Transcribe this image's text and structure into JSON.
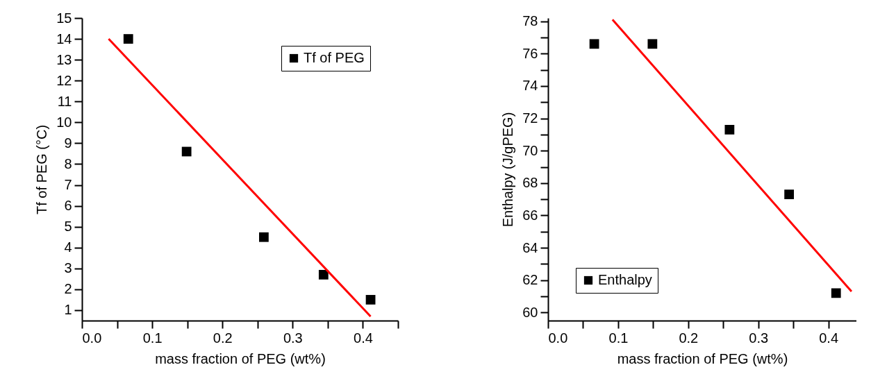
{
  "chart_data": [
    {
      "type": "scatter",
      "xlabel": "mass fraction of PEG (wt%)",
      "ylabel": "Tf of PEG (°C)",
      "xlim": [
        0,
        0.45
      ],
      "ylim": [
        0.5,
        15
      ],
      "xticks": [
        {
          "value": 0,
          "label": "0.0"
        },
        {
          "value": 0.05,
          "label": null
        },
        {
          "value": 0.1,
          "label": "0.1"
        },
        {
          "value": 0.15,
          "label": null
        },
        {
          "value": 0.2,
          "label": "0.2"
        },
        {
          "value": 0.25,
          "label": null
        },
        {
          "value": 0.3,
          "label": "0.3"
        },
        {
          "value": 0.35,
          "label": null
        },
        {
          "value": 0.4,
          "label": "0.4"
        },
        {
          "value": 0.45,
          "label": null
        }
      ],
      "yticks": [
        1,
        2,
        3,
        4,
        5,
        6,
        7,
        8,
        9,
        10,
        11,
        12,
        13,
        14,
        15
      ],
      "grid": false,
      "legend": "top right",
      "series": [
        {
          "name": "Tf of PEG",
          "type": "scatter",
          "marker": "square",
          "color": "#000000",
          "x": [
            0.066,
            0.149,
            0.259,
            0.344,
            0.411
          ],
          "values": [
            14.0,
            8.6,
            4.5,
            2.7,
            1.5
          ]
        },
        {
          "type": "line",
          "color": "#ff0000",
          "x": [
            0.038,
            0.411
          ],
          "values": [
            14.0,
            0.7
          ]
        }
      ]
    },
    {
      "type": "scatter",
      "xlabel": "mass fraction of PEG (wt%)",
      "ylabel": "Enthalpy (J/gPEG)",
      "xlim": [
        0,
        0.44
      ],
      "ylim": [
        59.5,
        78.2
      ],
      "xticks": [
        {
          "value": 0,
          "label": "0.0"
        },
        {
          "value": 0.05,
          "label": null
        },
        {
          "value": 0.1,
          "label": "0.1"
        },
        {
          "value": 0.15,
          "label": null
        },
        {
          "value": 0.2,
          "label": "0.2"
        },
        {
          "value": 0.25,
          "label": null
        },
        {
          "value": 0.3,
          "label": "0.3"
        },
        {
          "value": 0.35,
          "label": null
        },
        {
          "value": 0.4,
          "label": "0.4"
        }
      ],
      "yticks": [
        60,
        {
          "value": 61,
          "label": null
        },
        62,
        {
          "value": 63,
          "label": null
        },
        64,
        {
          "value": 65,
          "label": null
        },
        66,
        {
          "value": 67,
          "label": null
        },
        68,
        {
          "value": 69,
          "label": null
        },
        70,
        {
          "value": 71,
          "label": null
        },
        72,
        {
          "value": 73,
          "label": null
        },
        74,
        {
          "value": 75,
          "label": null
        },
        76,
        {
          "value": 77,
          "label": null
        },
        78
      ],
      "grid": false,
      "legend": "bottom left",
      "series": [
        {
          "name": "Enthalpy",
          "type": "scatter",
          "marker": "square",
          "color": "#000000",
          "x": [
            0.066,
            0.149,
            0.259,
            0.344,
            0.411
          ],
          "values": [
            76.6,
            76.6,
            71.3,
            67.3,
            61.2
          ]
        },
        {
          "type": "line",
          "color": "#ff0000",
          "x": [
            0.092,
            0.433
          ],
          "values": [
            78.1,
            61.3
          ]
        }
      ]
    }
  ]
}
